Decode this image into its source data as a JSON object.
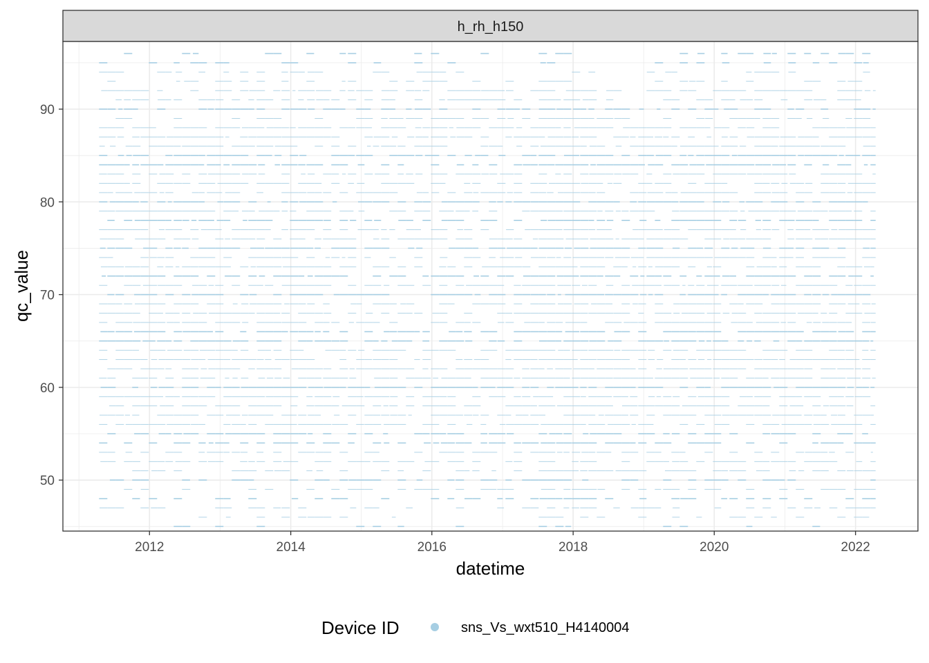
{
  "chart_data": {
    "type": "scatter",
    "facet_label": "h_rh_h150",
    "xlabel": "datetime",
    "ylabel": "qc_value",
    "x_ticks": [
      "2012",
      "2014",
      "2016",
      "2018",
      "2020",
      "2022"
    ],
    "y_ticks": [
      50,
      60,
      70,
      80,
      90
    ],
    "xlim": [
      "2010-10-10",
      "2022-11-20"
    ],
    "ylim": [
      44.5,
      97.3
    ],
    "grid": true,
    "legend_position": "bottom",
    "legend_title": "Device ID",
    "series": [
      {
        "name": "sns_Vs_wxt510_H4140004",
        "color": "#a6cee3",
        "x_range": [
          "2011-04-15",
          "2022-04-15"
        ],
        "y_levels": [
          45,
          46,
          47,
          48,
          49,
          50,
          51,
          52,
          53,
          54,
          55,
          56,
          57,
          58,
          59,
          60,
          61,
          62,
          63,
          64,
          65,
          66,
          67,
          68,
          69,
          70,
          71,
          72,
          73,
          74,
          75,
          76,
          77,
          78,
          79,
          80,
          81,
          82,
          83,
          84,
          85,
          86,
          87,
          88,
          89,
          90,
          91,
          92,
          93,
          94,
          95,
          96
        ],
        "dense_period": [
          "2017-07-01",
          "2018-04-15"
        ],
        "gap_at_top_period": [
          "2017-03-01",
          "2019-02-01"
        ]
      }
    ]
  }
}
